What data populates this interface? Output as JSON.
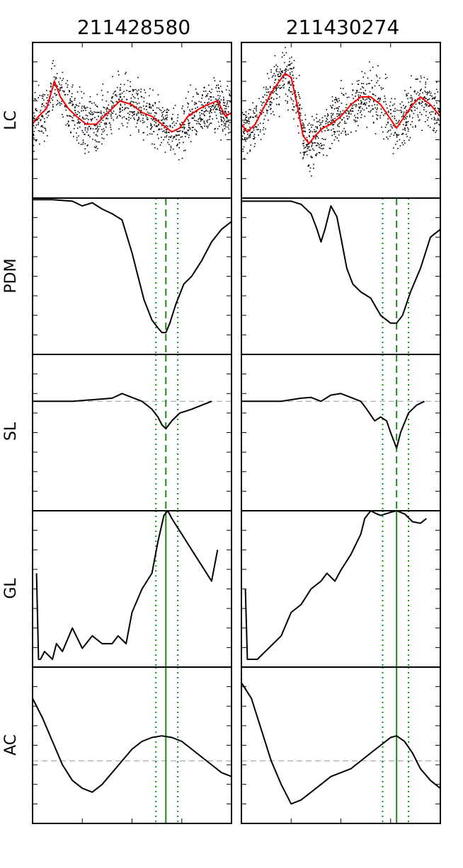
{
  "figure": {
    "columns": [
      "211428580",
      "211430274"
    ],
    "rows": [
      "LC",
      "PDM",
      "SL",
      "GL",
      "AC"
    ]
  },
  "chart_data": {
    "type": "line",
    "grid": false,
    "legend": "none",
    "description_note": "",
    "colors": {
      "data_points": "#000000",
      "binned_light_curve": "#ff0000",
      "curve": "#000000",
      "period_marker": "#1a8a1a",
      "reference_line": "#999999"
    },
    "panels": [
      {
        "column": "211428580",
        "period_marker_x": 0.67,
        "period_bounds_x": [
          0.62,
          0.73
        ],
        "LC": {
          "ylim": [
            -1,
            1
          ],
          "binned": [
            [
              0,
              -0.05
            ],
            [
              0.03,
              0.05
            ],
            [
              0.07,
              0.15
            ],
            [
              0.11,
              0.5
            ],
            [
              0.14,
              0.3
            ],
            [
              0.18,
              0.15
            ],
            [
              0.22,
              0.05
            ],
            [
              0.27,
              -0.05
            ],
            [
              0.32,
              -0.05
            ],
            [
              0.38,
              0.1
            ],
            [
              0.44,
              0.25
            ],
            [
              0.5,
              0.2
            ],
            [
              0.55,
              0.1
            ],
            [
              0.6,
              0.05
            ],
            [
              0.65,
              -0.05
            ],
            [
              0.7,
              -0.15
            ],
            [
              0.74,
              -0.1
            ],
            [
              0.78,
              0.05
            ],
            [
              0.84,
              0.15
            ],
            [
              0.88,
              0.2
            ],
            [
              0.93,
              0.25
            ],
            [
              0.97,
              0.05
            ],
            [
              1,
              0.1
            ]
          ]
        },
        "PDM": {
          "ylim": [
            0,
            1
          ],
          "x": [
            0,
            0.1,
            0.2,
            0.25,
            0.3,
            0.35,
            0.4,
            0.45,
            0.5,
            0.53,
            0.56,
            0.6,
            0.63,
            0.65,
            0.67,
            0.69,
            0.72,
            0.76,
            0.8,
            0.85,
            0.9,
            0.95,
            1
          ],
          "y": [
            0.99,
            0.99,
            0.98,
            0.95,
            0.97,
            0.93,
            0.9,
            0.86,
            0.65,
            0.5,
            0.35,
            0.22,
            0.17,
            0.14,
            0.14,
            0.2,
            0.32,
            0.45,
            0.5,
            0.6,
            0.72,
            0.8,
            0.85
          ]
        },
        "SL": {
          "ylim": [
            -1,
            1
          ],
          "reference_y": 0.4,
          "x": [
            0,
            0.1,
            0.2,
            0.3,
            0.4,
            0.45,
            0.5,
            0.55,
            0.6,
            0.63,
            0.65,
            0.67,
            0.7,
            0.74,
            0.8,
            0.85,
            0.9
          ],
          "y": [
            0.4,
            0.4,
            0.4,
            0.42,
            0.44,
            0.5,
            0.45,
            0.4,
            0.3,
            0.2,
            0.1,
            0.05,
            0.15,
            0.25,
            0.3,
            0.35,
            0.4
          ]
        },
        "GL": {
          "ylim": [
            0,
            1
          ],
          "x": [
            0.02,
            0.03,
            0.04,
            0.06,
            0.1,
            0.12,
            0.15,
            0.2,
            0.25,
            0.3,
            0.35,
            0.4,
            0.43,
            0.47,
            0.5,
            0.55,
            0.6,
            0.63,
            0.66,
            0.68,
            0.7,
            0.75,
            0.8,
            0.85,
            0.9,
            0.93
          ],
          "y": [
            0.6,
            0.05,
            0.05,
            0.1,
            0.05,
            0.15,
            0.1,
            0.25,
            0.12,
            0.2,
            0.15,
            0.15,
            0.2,
            0.15,
            0.35,
            0.5,
            0.6,
            0.8,
            0.97,
            1.0,
            0.95,
            0.85,
            0.75,
            0.65,
            0.55,
            0.75
          ]
        },
        "AC": {
          "ylim": [
            -1,
            1
          ],
          "reference_y": -0.2,
          "x": [
            0,
            0.05,
            0.1,
            0.15,
            0.2,
            0.25,
            0.3,
            0.35,
            0.4,
            0.45,
            0.5,
            0.55,
            0.6,
            0.65,
            0.7,
            0.75,
            0.8,
            0.85,
            0.9,
            0.95,
            1
          ],
          "y": [
            0.6,
            0.35,
            0.05,
            -0.25,
            -0.45,
            -0.55,
            -0.6,
            -0.5,
            -0.35,
            -0.2,
            -0.05,
            0.05,
            0.1,
            0.12,
            0.1,
            0.05,
            -0.05,
            -0.15,
            -0.25,
            -0.35,
            -0.4
          ]
        }
      },
      {
        "column": "211430274",
        "period_marker_x": 0.78,
        "period_bounds_x": [
          0.71,
          0.84
        ],
        "LC": {
          "ylim": [
            -1,
            1
          ],
          "binned": [
            [
              0,
              -0.05
            ],
            [
              0.03,
              -0.15
            ],
            [
              0.07,
              -0.05
            ],
            [
              0.11,
              0.15
            ],
            [
              0.15,
              0.35
            ],
            [
              0.19,
              0.5
            ],
            [
              0.22,
              0.6
            ],
            [
              0.25,
              0.55
            ],
            [
              0.28,
              0.2
            ],
            [
              0.31,
              -0.2
            ],
            [
              0.34,
              -0.3
            ],
            [
              0.37,
              -0.2
            ],
            [
              0.41,
              -0.1
            ],
            [
              0.45,
              -0.05
            ],
            [
              0.5,
              0.05
            ],
            [
              0.55,
              0.2
            ],
            [
              0.6,
              0.3
            ],
            [
              0.65,
              0.3
            ],
            [
              0.7,
              0.2
            ],
            [
              0.74,
              0.05
            ],
            [
              0.78,
              -0.1
            ],
            [
              0.82,
              0.05
            ],
            [
              0.86,
              0.2
            ],
            [
              0.9,
              0.3
            ],
            [
              0.95,
              0.2
            ],
            [
              1,
              0.05
            ]
          ]
        },
        "PDM": {
          "ylim": [
            0,
            1
          ],
          "x": [
            0,
            0.1,
            0.2,
            0.25,
            0.3,
            0.35,
            0.38,
            0.4,
            0.42,
            0.45,
            0.48,
            0.5,
            0.53,
            0.56,
            0.6,
            0.65,
            0.7,
            0.75,
            0.78,
            0.81,
            0.85,
            0.9,
            0.95,
            1
          ],
          "y": [
            0.98,
            0.98,
            0.98,
            0.98,
            0.96,
            0.9,
            0.8,
            0.72,
            0.8,
            0.95,
            0.88,
            0.75,
            0.55,
            0.45,
            0.4,
            0.36,
            0.25,
            0.2,
            0.2,
            0.25,
            0.4,
            0.55,
            0.75,
            0.8
          ]
        },
        "SL": {
          "ylim": [
            -1,
            1
          ],
          "reference_y": 0.4,
          "x": [
            0,
            0.1,
            0.2,
            0.3,
            0.35,
            0.4,
            0.45,
            0.5,
            0.55,
            0.6,
            0.63,
            0.67,
            0.7,
            0.73,
            0.75,
            0.78,
            0.8,
            0.84,
            0.88,
            0.92
          ],
          "y": [
            0.4,
            0.4,
            0.4,
            0.44,
            0.45,
            0.4,
            0.48,
            0.5,
            0.45,
            0.4,
            0.3,
            0.15,
            0.2,
            0.15,
            0.0,
            -0.2,
            0.0,
            0.25,
            0.35,
            0.4
          ]
        },
        "GL": {
          "ylim": [
            0,
            1
          ],
          "x": [
            0.02,
            0.03,
            0.04,
            0.08,
            0.12,
            0.16,
            0.2,
            0.25,
            0.3,
            0.35,
            0.4,
            0.43,
            0.47,
            0.5,
            0.55,
            0.6,
            0.62,
            0.65,
            0.68,
            0.7,
            0.75,
            0.78,
            0.82,
            0.86,
            0.9,
            0.93
          ],
          "y": [
            0.5,
            0.05,
            0.05,
            0.05,
            0.1,
            0.15,
            0.2,
            0.35,
            0.4,
            0.5,
            0.55,
            0.6,
            0.55,
            0.62,
            0.72,
            0.85,
            0.95,
            1.0,
            0.98,
            0.97,
            0.99,
            1.0,
            0.98,
            0.93,
            0.92,
            0.95
          ]
        },
        "AC": {
          "ylim": [
            -1,
            1
          ],
          "reference_y": -0.2,
          "x": [
            0,
            0.05,
            0.1,
            0.15,
            0.2,
            0.25,
            0.3,
            0.35,
            0.4,
            0.45,
            0.5,
            0.55,
            0.6,
            0.65,
            0.7,
            0.75,
            0.78,
            0.82,
            0.86,
            0.9,
            0.95,
            1
          ],
          "y": [
            0.8,
            0.6,
            0.2,
            -0.2,
            -0.5,
            -0.75,
            -0.7,
            -0.6,
            -0.5,
            -0.4,
            -0.35,
            -0.3,
            -0.2,
            -0.1,
            0.0,
            0.1,
            0.12,
            0.05,
            -0.1,
            -0.3,
            -0.45,
            -0.55
          ]
        }
      }
    ]
  }
}
